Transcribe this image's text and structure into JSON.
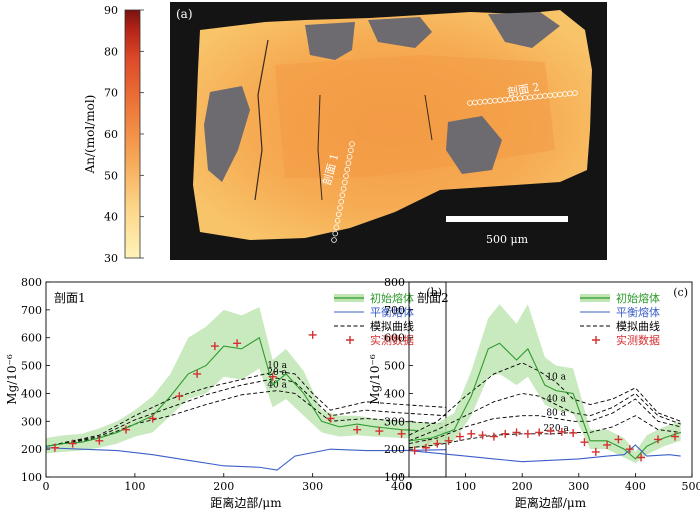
{
  "colorbar": {
    "label": "An/(mol/mol)",
    "ticks": [
      "90",
      "80",
      "70",
      "60",
      "50",
      "40",
      "30"
    ],
    "colors": [
      "#fff3b8",
      "#fcd68a",
      "#f6a757",
      "#ee7a3a",
      "#de4a2a",
      "#b52418",
      "#7a1212"
    ]
  },
  "image_panel": {
    "tag": "(a)",
    "profile1_label": "剖面 1",
    "profile2_label": "剖面 2",
    "scalebar_label": "500 μm",
    "colors": {
      "background": "#141414",
      "crystal": "#f7b55a",
      "core": "#f39a45",
      "inclusion": "#6d6a70"
    }
  },
  "chart_data": [
    {
      "type": "line",
      "panel": "(b)",
      "profile": "剖面1",
      "xlabel": "距离边部/μm",
      "ylabel": "Mg/10⁻⁶",
      "xlim": [
        0,
        450
      ],
      "ylim": [
        100,
        800
      ],
      "xticks": [
        0,
        100,
        200,
        300,
        400
      ],
      "yticks": [
        100,
        200,
        300,
        400,
        500,
        600,
        700,
        800
      ],
      "legend": [
        "初始熔体",
        "平衡熔体",
        "模拟曲线",
        "实测数据"
      ],
      "legend_position": "top-right",
      "series": [
        {
          "name": "初始熔体",
          "color": "#2e9a2e",
          "x": [
            0,
            20,
            40,
            60,
            80,
            100,
            120,
            140,
            160,
            180,
            200,
            220,
            240,
            255,
            270,
            290,
            310,
            330,
            350,
            370,
            400,
            430,
            450
          ],
          "y": [
            210,
            220,
            225,
            240,
            260,
            290,
            320,
            390,
            470,
            500,
            570,
            560,
            600,
            430,
            470,
            400,
            300,
            280,
            290,
            280,
            270,
            265,
            260
          ],
          "band_upper": [
            240,
            250,
            255,
            275,
            300,
            340,
            390,
            470,
            600,
            640,
            700,
            680,
            710,
            520,
            560,
            480,
            340,
            320,
            320,
            310,
            300,
            295,
            290
          ],
          "band_lower": [
            185,
            190,
            195,
            205,
            220,
            245,
            260,
            320,
            380,
            400,
            460,
            450,
            490,
            350,
            380,
            320,
            260,
            245,
            250,
            245,
            240,
            235,
            230
          ]
        },
        {
          "name": "平衡熔体",
          "color": "#3c5fc8",
          "x": [
            0,
            40,
            80,
            120,
            160,
            200,
            240,
            260,
            280,
            320,
            360,
            400,
            450
          ],
          "y": [
            205,
            200,
            195,
            180,
            160,
            140,
            135,
            125,
            175,
            200,
            195,
            195,
            198
          ]
        },
        {
          "name": "模拟曲线",
          "color": "#000000",
          "dash": true,
          "curves": [
            {
              "label": "10 a",
              "x": [
                0,
                60,
                100,
                140,
                180,
                220,
                260,
                280,
                300,
                320,
                360,
                400,
                450
              ],
              "y": [
                210,
                250,
                320,
                380,
                420,
                450,
                480,
                470,
                400,
                340,
                370,
                360,
                350
              ]
            },
            {
              "label": "20 a",
              "x": [
                0,
                60,
                100,
                140,
                180,
                220,
                260,
                280,
                300,
                320,
                360,
                400,
                450
              ],
              "y": [
                210,
                245,
                305,
                350,
                395,
                430,
                455,
                440,
                380,
                320,
                340,
                330,
                320
              ]
            },
            {
              "label": "40 a",
              "x": [
                0,
                60,
                100,
                140,
                180,
                220,
                260,
                280,
                300,
                320,
                360,
                400,
                450
              ],
              "y": [
                210,
                240,
                290,
                320,
                360,
                395,
                410,
                400,
                350,
                300,
                310,
                300,
                290
              ]
            }
          ]
        },
        {
          "name": "实测数据",
          "color": "#d43030",
          "marker": "+",
          "x": [
            10,
            30,
            60,
            90,
            120,
            150,
            170,
            190,
            215,
            255,
            300,
            320,
            350,
            375,
            400,
            430
          ],
          "y": [
            205,
            220,
            230,
            270,
            310,
            390,
            470,
            570,
            580,
            460,
            610,
            310,
            270,
            265,
            255,
            230
          ]
        }
      ]
    },
    {
      "type": "line",
      "panel": "(c)",
      "profile": "剖面2",
      "xlabel": "距离边部/μm",
      "ylabel": "Mg/10⁻⁶",
      "xlim": [
        0,
        500
      ],
      "ylim": [
        100,
        800
      ],
      "xticks": [
        0,
        100,
        200,
        300,
        400,
        500
      ],
      "yticks": [
        100,
        200,
        300,
        400,
        500,
        600,
        700,
        800
      ],
      "legend": [
        "初始熔体",
        "平衡熔体",
        "模拟曲线",
        "实测数据"
      ],
      "legend_position": "top-right",
      "series": [
        {
          "name": "初始熔体",
          "color": "#2e9a2e",
          "x": [
            0,
            40,
            80,
            110,
            140,
            160,
            190,
            210,
            240,
            260,
            290,
            320,
            350,
            380,
            400,
            420,
            450,
            480
          ],
          "y": [
            230,
            240,
            270,
            390,
            560,
            580,
            520,
            560,
            430,
            410,
            400,
            230,
            230,
            200,
            165,
            210,
            240,
            260
          ],
          "band_upper": [
            260,
            280,
            330,
            480,
            670,
            720,
            650,
            720,
            530,
            500,
            490,
            270,
            270,
            240,
            190,
            250,
            280,
            300
          ],
          "band_lower": [
            200,
            210,
            230,
            320,
            460,
            470,
            430,
            460,
            360,
            340,
            330,
            200,
            200,
            170,
            150,
            180,
            210,
            230
          ]
        },
        {
          "name": "平衡熔体",
          "color": "#3c5fc8",
          "x": [
            0,
            50,
            100,
            150,
            200,
            250,
            300,
            350,
            380,
            400,
            420,
            460,
            480
          ],
          "y": [
            195,
            185,
            175,
            165,
            155,
            160,
            165,
            175,
            180,
            215,
            175,
            180,
            175
          ]
        },
        {
          "name": "模拟曲线",
          "color": "#000000",
          "dash": true,
          "curves": [
            {
              "label": "10 a",
              "x": [
                0,
                50,
                100,
                150,
                200,
                230,
                260,
                290,
                320,
                360,
                400,
                440,
                480
              ],
              "y": [
                250,
                300,
                390,
                470,
                510,
                480,
                440,
                380,
                360,
                380,
                420,
                330,
                300
              ]
            },
            {
              "label": "40 a",
              "x": [
                0,
                50,
                100,
                150,
                200,
                230,
                260,
                290,
                320,
                360,
                400,
                440,
                480
              ],
              "y": [
                230,
                270,
                320,
                370,
                400,
                390,
                360,
                330,
                320,
                350,
                400,
                320,
                290
              ]
            },
            {
              "label": "80 a",
              "x": [
                0,
                50,
                100,
                150,
                200,
                230,
                260,
                290,
                320,
                360,
                400,
                440,
                480
              ],
              "y": [
                220,
                240,
                280,
                310,
                320,
                320,
                310,
                300,
                300,
                330,
                380,
                300,
                280
              ]
            },
            {
              "label": "220 a",
              "x": [
                0,
                50,
                100,
                150,
                200,
                230,
                260,
                290,
                320,
                360,
                400,
                440,
                480
              ],
              "y": [
                205,
                215,
                235,
                250,
                255,
                255,
                255,
                260,
                260,
                280,
                320,
                270,
                260
              ]
            }
          ]
        },
        {
          "name": "实测数据",
          "color": "#d43030",
          "marker": "+",
          "x": [
            10,
            30,
            50,
            70,
            90,
            110,
            130,
            150,
            170,
            190,
            210,
            230,
            250,
            270,
            290,
            310,
            330,
            350,
            370,
            390,
            410,
            440,
            470
          ],
          "y": [
            195,
            205,
            220,
            230,
            245,
            255,
            250,
            245,
            255,
            260,
            255,
            260,
            265,
            262,
            258,
            225,
            190,
            215,
            235,
            200,
            170,
            235,
            245
          ]
        }
      ]
    }
  ]
}
